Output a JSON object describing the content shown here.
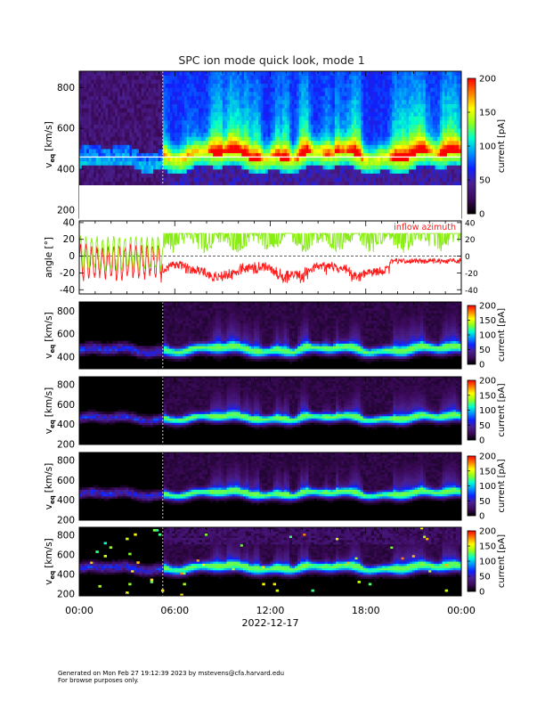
{
  "title": "SPC ion mode quick look, mode 1",
  "footer": {
    "line1": "Generated on Mon Feb 27 19:12:39 2023 by mstevens@cfa.harvard.edu",
    "line2": "For browse purposes only."
  },
  "colors": {
    "colormap": [
      "#000000",
      "#3c0a5a",
      "#4a2090",
      "#1020ff",
      "#0090ff",
      "#00ffd0",
      "#8cff20",
      "#ffff00",
      "#ff8000",
      "#ff0000"
    ],
    "angle_series_red": "#ff1a1a",
    "angle_series_green": "#88ee11"
  },
  "chart_data": [
    {
      "type": "heatmap",
      "panel": "top",
      "ylabel_main": "v",
      "ylabel_sub": "eq",
      "ylabel_unit": "[km/s]",
      "yticks": [
        "200",
        "400",
        "600",
        "800"
      ],
      "ylim": [
        160,
        880
      ],
      "colorbar": {
        "label": "current [pA]",
        "ticks": [
          "0",
          "50",
          "100",
          "150",
          "200"
        ],
        "range": [
          0,
          200
        ]
      },
      "time_range_hours": [
        0,
        24
      ],
      "data_gap_end_hour": 5.25,
      "core_speed_km_s": 460
    },
    {
      "type": "line",
      "panel": "angle",
      "ylabel": "angle [°]",
      "yticks": [
        "-40",
        "-20",
        "0",
        "20",
        "40"
      ],
      "ylim": [
        -45,
        42
      ],
      "legend": "inflow azimuth",
      "legend_placement": "top-right",
      "series": [
        {
          "name": "inflow azimuth",
          "color": "#ff1a1a",
          "typical_range": [
            -30,
            5
          ]
        },
        {
          "color": "#88ee11",
          "typical_range": [
            -20,
            28
          ]
        }
      ]
    },
    {
      "type": "heatmap",
      "panel": "sensor-1",
      "ylabel_main": "v",
      "ylabel_sub": "eq",
      "ylabel_unit": "[km/s]",
      "yticks": [
        "400",
        "600",
        "800"
      ],
      "ylim": [
        300,
        880
      ],
      "colorbar": {
        "label": "current [pA]",
        "ticks": [
          "0",
          "50",
          "100",
          "150",
          "200"
        ],
        "range": [
          0,
          200
        ]
      }
    },
    {
      "type": "heatmap",
      "panel": "sensor-2",
      "ylabel_main": "v",
      "ylabel_sub": "eq",
      "ylabel_unit": "[km/s]",
      "yticks": [
        "200",
        "400",
        "600",
        "800"
      ],
      "ylim": [
        200,
        880
      ],
      "colorbar": {
        "label": "current [pA]",
        "ticks": [
          "0",
          "50",
          "100",
          "150",
          "200"
        ],
        "range": [
          0,
          200
        ]
      }
    },
    {
      "type": "heatmap",
      "panel": "sensor-3",
      "ylabel_main": "v",
      "ylabel_sub": "eq",
      "ylabel_unit": "[km/s]",
      "yticks": [
        "200",
        "400",
        "600",
        "800"
      ],
      "ylim": [
        200,
        880
      ],
      "colorbar": {
        "label": "current [pA]",
        "ticks": [
          "0",
          "50",
          "100",
          "150",
          "200"
        ],
        "range": [
          0,
          200
        ]
      }
    },
    {
      "type": "heatmap",
      "panel": "sensor-4",
      "ylabel_main": "v",
      "ylabel_sub": "eq",
      "ylabel_unit": "[km/s]",
      "yticks": [
        "200",
        "400",
        "600",
        "800"
      ],
      "ylim": [
        180,
        880
      ],
      "colorbar": {
        "label": "current [pA]",
        "ticks": [
          "0",
          "50",
          "100",
          "150",
          "200"
        ],
        "range": [
          0,
          200
        ]
      }
    }
  ],
  "x_axis": {
    "ticks": [
      "00:00",
      "06:00",
      "12:00",
      "18:00",
      "00:00"
    ],
    "tick_hours": [
      0,
      6,
      12,
      18,
      24
    ],
    "date_label": "2022-12-17"
  }
}
